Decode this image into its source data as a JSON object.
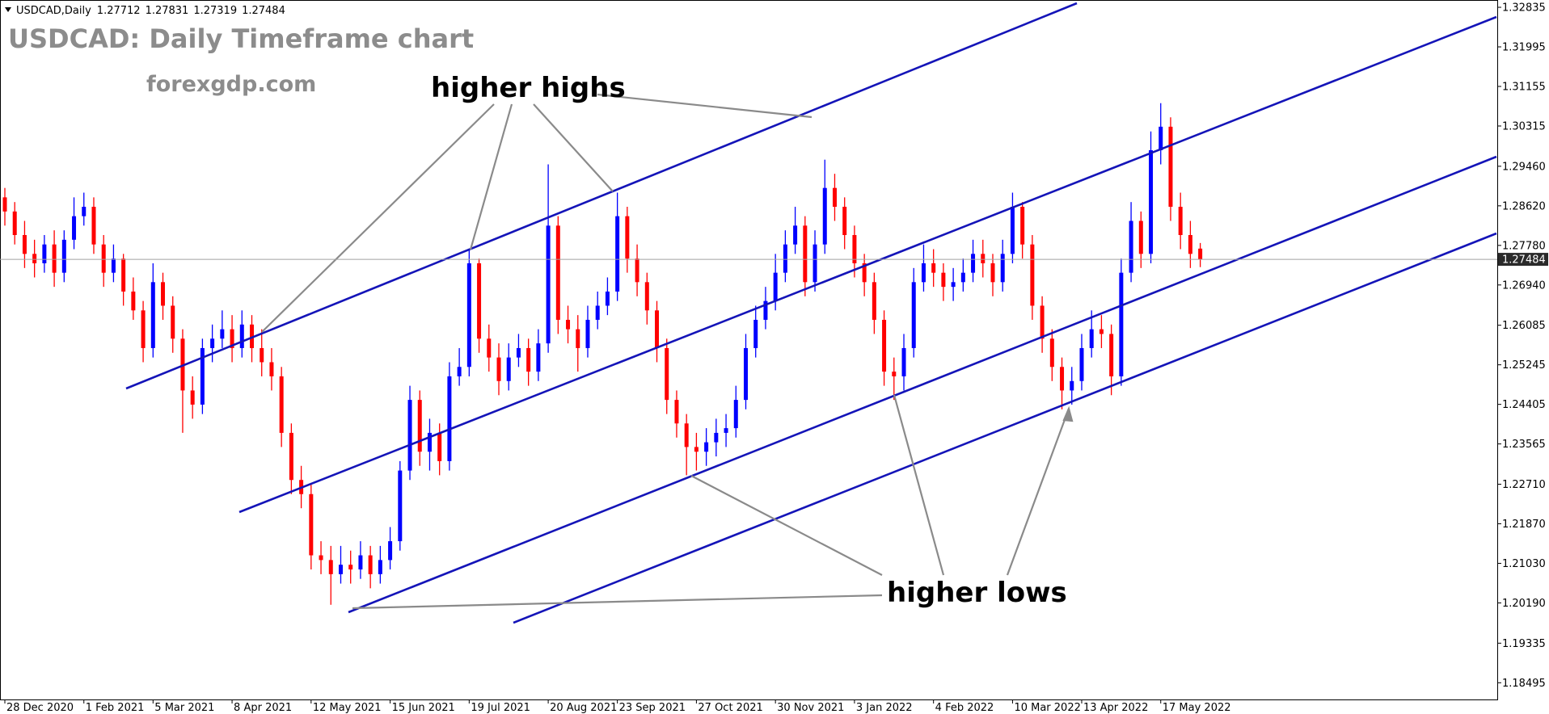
{
  "chart_data": {
    "type": "candlestick",
    "symbol_label": "USDCAD,Daily",
    "title": "USDCAD: Daily Timeframe chart",
    "subtitle": "forexgdp.com",
    "annotations": [
      "higher highs",
      "higher lows"
    ],
    "up_color": "#0000ff",
    "down_color": "#ff0000",
    "ylim": [
      1.1814,
      1.3299
    ],
    "yticks": [
      1.32835,
      1.31995,
      1.31155,
      1.30315,
      {
        "value": 1.2946,
        "label": "1.29460"
      },
      {
        "value": 1.2862,
        "label": "1.28620"
      },
      {
        "value": 1.2778,
        "label": "1.27780"
      },
      {
        "value": 1.2694,
        "label": "1.26940"
      },
      1.26085,
      1.25245,
      1.24405,
      1.23565,
      {
        "value": 1.2271,
        "label": "1.22710"
      },
      {
        "value": 1.2187,
        "label": "1.21870"
      },
      {
        "value": 1.2103,
        "label": "1.21030"
      },
      {
        "value": 1.2019,
        "label": "1.20190"
      },
      1.19335,
      1.18495
    ],
    "categories": [
      "28 Dec 2020",
      null,
      null,
      null,
      null,
      null,
      null,
      null,
      "1 Feb 2021",
      null,
      null,
      null,
      null,
      null,
      null,
      "5 Mar 2021",
      null,
      null,
      null,
      null,
      null,
      null,
      null,
      "8 Apr 2021",
      null,
      null,
      null,
      null,
      null,
      null,
      null,
      "12 May 2021",
      null,
      null,
      null,
      null,
      null,
      null,
      null,
      "15 Jun 2021",
      null,
      null,
      null,
      null,
      null,
      null,
      null,
      "19 Jul 2021",
      null,
      null,
      null,
      null,
      null,
      null,
      null,
      "20 Aug 2021",
      null,
      null,
      null,
      null,
      null,
      null,
      "23 Sep 2021",
      null,
      null,
      null,
      null,
      null,
      null,
      null,
      "27 Oct 2021",
      null,
      null,
      null,
      null,
      null,
      null,
      null,
      "30 Nov 2021",
      null,
      null,
      null,
      null,
      null,
      null,
      null,
      "3 Jan 2022",
      null,
      null,
      null,
      null,
      null,
      null,
      null,
      "4 Feb 2022",
      null,
      null,
      null,
      null,
      null,
      null,
      null,
      "10 Mar 2022",
      null,
      null,
      null,
      null,
      null,
      null,
      "13 Apr 2022",
      null,
      null,
      null,
      null,
      null,
      null,
      null,
      "17 May 2022",
      null,
      null,
      null,
      null
    ],
    "open": [
      1.288,
      1.285,
      1.28,
      1.276,
      1.274,
      1.278,
      1.272,
      1.279,
      1.284,
      1.286,
      1.278,
      1.272,
      1.275,
      1.268,
      1.264,
      1.256,
      1.27,
      1.265,
      1.258,
      1.247,
      1.244,
      1.256,
      1.258,
      1.26,
      1.256,
      1.261,
      1.256,
      1.253,
      1.25,
      1.238,
      1.228,
      1.225,
      1.212,
      1.211,
      1.208,
      1.21,
      1.209,
      1.212,
      1.208,
      1.211,
      1.215,
      1.23,
      1.245,
      1.234,
      1.238,
      1.232,
      1.25,
      1.252,
      1.274,
      1.258,
      1.254,
      1.249,
      1.254,
      1.256,
      1.251,
      1.257,
      1.282,
      1.262,
      1.26,
      1.256,
      1.262,
      1.265,
      1.268,
      1.284,
      1.275,
      1.27,
      1.264,
      1.256,
      1.245,
      1.24,
      1.235,
      1.234,
      1.236,
      1.238,
      1.239,
      1.245,
      1.256,
      1.262,
      1.266,
      1.272,
      1.278,
      1.282,
      1.27,
      1.278,
      1.29,
      1.286,
      1.28,
      1.274,
      1.27,
      1.262,
      1.251,
      1.25,
      1.256,
      1.27,
      1.274,
      1.272,
      1.269,
      1.27,
      1.272,
      1.276,
      1.274,
      1.27,
      1.276,
      1.286,
      1.278,
      1.265,
      1.258,
      1.252,
      1.247,
      1.249,
      1.256,
      1.26,
      1.259,
      1.25,
      1.272,
      1.283,
      1.276,
      1.298,
      1.303,
      1.286,
      1.28,
      1.27712
    ],
    "high": [
      1.29,
      1.287,
      1.283,
      1.279,
      1.28,
      1.281,
      1.281,
      1.288,
      1.289,
      1.288,
      1.28,
      1.278,
      1.276,
      1.271,
      1.266,
      1.274,
      1.272,
      1.267,
      1.26,
      1.25,
      1.258,
      1.261,
      1.264,
      1.263,
      1.264,
      1.263,
      1.26,
      1.256,
      1.252,
      1.24,
      1.231,
      1.227,
      1.215,
      1.214,
      1.214,
      1.213,
      1.215,
      1.214,
      1.214,
      1.218,
      1.232,
      1.248,
      1.247,
      1.241,
      1.24,
      1.253,
      1.256,
      1.277,
      1.275,
      1.261,
      1.257,
      1.257,
      1.259,
      1.258,
      1.26,
      1.295,
      1.284,
      1.265,
      1.263,
      1.265,
      1.268,
      1.271,
      1.289,
      1.286,
      1.278,
      1.272,
      1.266,
      1.258,
      1.247,
      1.242,
      1.238,
      1.239,
      1.241,
      1.242,
      1.248,
      1.259,
      1.265,
      1.269,
      1.276,
      1.281,
      1.286,
      1.284,
      1.281,
      1.296,
      1.293,
      1.288,
      1.282,
      1.276,
      1.272,
      1.264,
      1.254,
      1.259,
      1.273,
      1.278,
      1.277,
      1.274,
      1.273,
      1.275,
      1.279,
      1.279,
      1.276,
      1.279,
      1.289,
      1.287,
      1.28,
      1.267,
      1.26,
      1.254,
      1.252,
      1.259,
      1.264,
      1.263,
      1.261,
      1.275,
      1.287,
      1.285,
      1.302,
      1.308,
      1.305,
      1.289,
      1.283,
      1.27831
    ],
    "low": [
      1.282,
      1.278,
      1.273,
      1.271,
      1.272,
      1.269,
      1.27,
      1.277,
      1.282,
      1.276,
      1.269,
      1.27,
      1.265,
      1.262,
      1.253,
      1.254,
      1.262,
      1.255,
      1.238,
      1.241,
      1.242,
      1.253,
      1.256,
      1.253,
      1.254,
      1.253,
      1.25,
      1.247,
      1.235,
      1.225,
      1.222,
      1.209,
      1.208,
      1.2015,
      1.206,
      1.206,
      1.207,
      1.205,
      1.206,
      1.209,
      1.213,
      1.228,
      1.231,
      1.23,
      1.229,
      1.23,
      1.248,
      1.25,
      1.255,
      1.251,
      1.246,
      1.247,
      1.252,
      1.248,
      1.249,
      1.255,
      1.259,
      1.257,
      1.251,
      1.254,
      1.26,
      1.263,
      1.266,
      1.272,
      1.267,
      1.261,
      1.253,
      1.242,
      1.237,
      1.229,
      1.23,
      1.231,
      1.233,
      1.235,
      1.237,
      1.243,
      1.254,
      1.26,
      1.264,
      1.27,
      1.276,
      1.267,
      1.268,
      1.276,
      1.283,
      1.277,
      1.271,
      1.267,
      1.259,
      1.248,
      1.245,
      1.247,
      1.254,
      1.268,
      1.269,
      1.266,
      1.266,
      1.268,
      1.27,
      1.271,
      1.267,
      1.268,
      1.274,
      1.275,
      1.262,
      1.255,
      1.249,
      1.243,
      1.244,
      1.247,
      1.254,
      1.256,
      1.246,
      1.248,
      1.27,
      1.273,
      1.274,
      1.295,
      1.283,
      1.277,
      1.273,
      1.27319
    ],
    "close": [
      1.285,
      1.28,
      1.276,
      1.274,
      1.278,
      1.272,
      1.279,
      1.284,
      1.286,
      1.278,
      1.272,
      1.275,
      1.268,
      1.264,
      1.256,
      1.27,
      1.265,
      1.258,
      1.247,
      1.244,
      1.256,
      1.258,
      1.26,
      1.256,
      1.261,
      1.256,
      1.253,
      1.25,
      1.238,
      1.228,
      1.225,
      1.212,
      1.211,
      1.208,
      1.21,
      1.209,
      1.212,
      1.208,
      1.211,
      1.215,
      1.23,
      1.245,
      1.234,
      1.238,
      1.232,
      1.25,
      1.252,
      1.274,
      1.258,
      1.254,
      1.249,
      1.254,
      1.256,
      1.251,
      1.257,
      1.282,
      1.262,
      1.26,
      1.256,
      1.262,
      1.265,
      1.268,
      1.284,
      1.275,
      1.27,
      1.264,
      1.256,
      1.245,
      1.24,
      1.235,
      1.234,
      1.236,
      1.238,
      1.239,
      1.245,
      1.256,
      1.262,
      1.266,
      1.272,
      1.278,
      1.282,
      1.27,
      1.278,
      1.29,
      1.286,
      1.28,
      1.274,
      1.27,
      1.262,
      1.251,
      1.25,
      1.256,
      1.27,
      1.274,
      1.272,
      1.269,
      1.27,
      1.272,
      1.276,
      1.274,
      1.27,
      1.276,
      1.286,
      1.278,
      1.265,
      1.258,
      1.252,
      1.247,
      1.249,
      1.256,
      1.26,
      1.259,
      1.25,
      1.272,
      1.283,
      1.276,
      1.298,
      1.303,
      1.286,
      1.28,
      1.276,
      1.27484
    ]
  }
}
